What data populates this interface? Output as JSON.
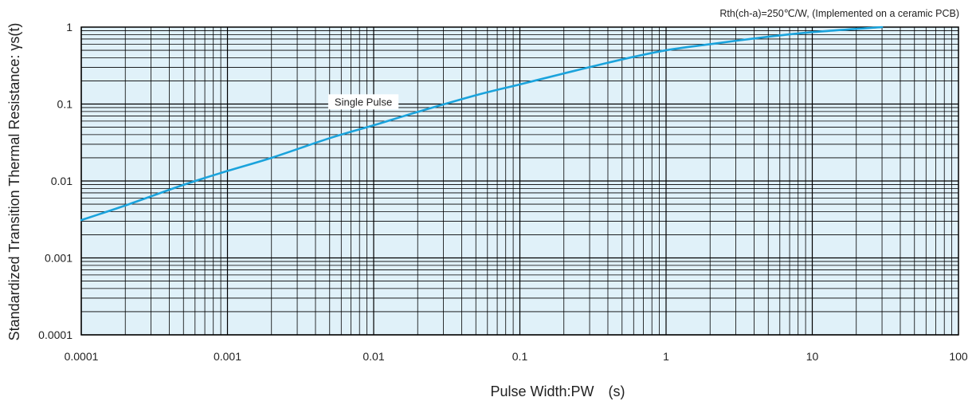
{
  "chart_data": {
    "type": "line",
    "xscale": "log",
    "yscale": "log",
    "xlim": [
      0.0001,
      100
    ],
    "ylim": [
      0.0001,
      1
    ],
    "xlabel": "Pulse Width:PW　(s)",
    "ylabel": "Standardized Transition Thermal Resistance: γs(t)",
    "note": "Rth(ch-a)=250℃/W,  (Implemented on a ceramic PCB)",
    "grid": true,
    "x_ticks": [
      {
        "value": 0.0001,
        "label": "0.0001"
      },
      {
        "value": 0.001,
        "label": "0.001"
      },
      {
        "value": 0.01,
        "label": "0.01"
      },
      {
        "value": 0.1,
        "label": "0.1"
      },
      {
        "value": 1,
        "label": "1"
      },
      {
        "value": 10,
        "label": "10"
      },
      {
        "value": 100,
        "label": "100"
      }
    ],
    "y_ticks": [
      {
        "value": 0.0001,
        "label": "0.0001"
      },
      {
        "value": 0.001,
        "label": "0.001"
      },
      {
        "value": 0.01,
        "label": "0.01"
      },
      {
        "value": 0.1,
        "label": "0.1"
      },
      {
        "value": 1,
        "label": "1"
      }
    ],
    "series": [
      {
        "name": "Single Pulse",
        "color": "#1aa3dc",
        "x": [
          0.0001,
          0.0002,
          0.0005,
          0.001,
          0.002,
          0.005,
          0.01,
          0.02,
          0.05,
          0.1,
          0.2,
          0.5,
          1,
          2,
          5,
          10,
          30
        ],
        "y": [
          0.0031,
          0.0048,
          0.0089,
          0.0135,
          0.02,
          0.036,
          0.053,
          0.079,
          0.13,
          0.18,
          0.25,
          0.38,
          0.5,
          0.6,
          0.75,
          0.86,
          1.0
        ]
      }
    ],
    "annotations": [
      {
        "text": "Single Pulse",
        "x": 0.0085,
        "y": 0.108
      }
    ]
  },
  "colors": {
    "plot_background": "#e0f1f9",
    "grid_line": "#000000",
    "curve": "#1aa3dc"
  }
}
